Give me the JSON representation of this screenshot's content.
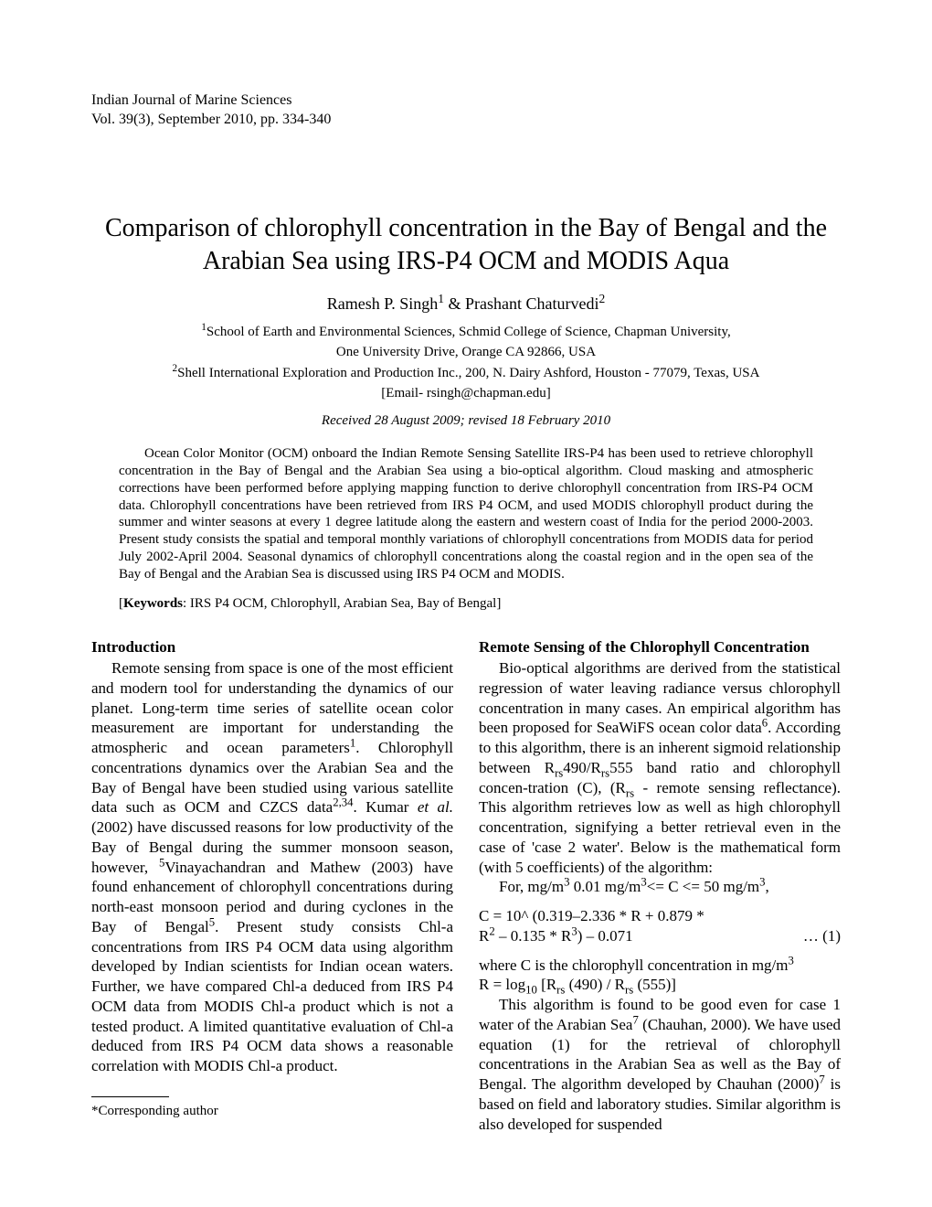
{
  "header": {
    "journal": "Indian Journal of Marine Sciences",
    "citation": "Vol. 39(3), September 2010, pp. 334-340"
  },
  "title": "Comparison of chlorophyll concentration in the Bay of Bengal and the Arabian Sea using IRS-P4 OCM and MODIS Aqua",
  "authors": {
    "line": "Ramesh P. Singh",
    "sup1": "1",
    "amp": " & Prashant Chaturvedi",
    "sup2": "2"
  },
  "affiliations": {
    "aff1_sup": "1",
    "aff1_line1": "School of Earth and Environmental Sciences, Schmid College of Science, Chapman University,",
    "aff1_line2": "One University Drive, Orange CA 92866, USA",
    "aff2_sup": "2",
    "aff2": "Shell International Exploration and Production Inc., 200, N. Dairy Ashford, Houston - 77079, Texas, USA",
    "email": "[Email- rsingh@chapman.edu]"
  },
  "received": "Received 28 August 2009; revised 18 February 2010",
  "abstract": "Ocean Color Monitor (OCM) onboard the Indian Remote Sensing Satellite IRS-P4 has been used to retrieve chlorophyll concentration in the Bay of Bengal and the Arabian Sea using a bio-optical algorithm. Cloud masking and atmospheric corrections have been performed before applying mapping function to derive chlorophyll concentration from IRS-P4 OCM data. Chlorophyll concentrations have been retrieved from IRS P4 OCM, and used MODIS chlorophyll product during the summer and winter seasons at every 1 degree latitude along the eastern and western coast of India for the period 2000-2003. Present study consists the spatial and temporal monthly variations of chlorophyll concentrations from MODIS data for period July 2002-April 2004. Seasonal dynamics of chlorophyll concentrations along the coastal region and in the open sea of the Bay of Bengal and the Arabian Sea is discussed using IRS P4 OCM and MODIS.",
  "keywords": {
    "label": "Keywords",
    "text": ": IRS P4 OCM, Chlorophyll, Arabian Sea, Bay of Bengal]"
  },
  "left": {
    "heading": "Introduction",
    "p1a": "Remote sensing from space is one of the most efficient and modern tool for understanding the dynamics of our planet. Long-term time series of satellite ocean color measurement are important for understanding the atmospheric and ocean parameters",
    "sup1": "1",
    "p1b": ". Chlorophyll concentrations dynamics over the Arabian Sea and the Bay of Bengal have been studied using various satellite data such as OCM and CZCS data",
    "sup2": "2,34",
    "p1c": ". Kumar ",
    "etal": "et al.",
    "p1d": " (2002) have discussed reasons for low productivity of the Bay of Bengal during the summer monsoon season, however, ",
    "sup5": "5",
    "p1e": "Vinayachandran and Mathew (2003) have found enhancement of chlorophyll concentrations during north-east monsoon period and during cyclones in the Bay of Bengal",
    "sup5b": "5",
    "p1f": ". Present study consists Chl-a concentrations from IRS P4 OCM data using algorithm developed by Indian scientists for Indian ocean waters. Further, we have compared Chl-a deduced from IRS P4 OCM data from MODIS Chl-a product which is not a tested product. A limited quantitative evaluation of Chl-a deduced from IRS P4 OCM data shows a reasonable correlation with MODIS Chl-a product."
  },
  "footnote": "*Corresponding author",
  "right": {
    "heading": "Remote Sensing of the Chlorophyll Concentration",
    "p1a": "Bio-optical algorithms are derived from the statistical regression of water leaving radiance versus chlorophyll concentration in many cases. An empirical algorithm has been proposed for SeaWiFS ocean color data",
    "sup6": "6",
    "p1b": ". According to this algorithm, there is an inherent sigmoid relationship between R",
    "rs1": "rs",
    "p1c": "490/R",
    "rs2": "rs",
    "p1d": "555 band ratio and chlorophyll concen-tration (C), (R",
    "rs3": "rs",
    "p1e": " - remote sensing reflectance). This algorithm retrieves low as well as high chlorophyll concentration, signifying a better retrieval even in the case of 'case 2 water'. Below is the mathematical form (with 5 coefficients) of the algorithm:",
    "p2a": "For, mg/m",
    "sup3a": "3",
    "p2b": " 0.01 mg/m",
    "sup3b": "3",
    "p2c": "<= C <= 50 mg/m",
    "sup3c": "3",
    "p2d": ",",
    "eq1_line1": "C = 10^ (0.319–2.336 * R + 0.879 *",
    "eq1_line2a": "R",
    "eq1_sup2": "2",
    "eq1_line2b": " – 0.135 * R",
    "eq1_sup3": "3",
    "eq1_line2c": ") – 0.071",
    "eq1_num": "…  (1)",
    "p3a": "where C is the chlorophyll concentration in mg/m",
    "p3sup": "3",
    "p4a": "R = log",
    "p4sub": "10",
    "p4b": " [R",
    "p4rs1": "rs",
    "p4c": " (490) / R",
    "p4rs2": "rs",
    "p4d": " (555)]",
    "p5a": "This algorithm is found to be good even for case 1 water of the Arabian Sea",
    "sup7": "7",
    "p5b": " (Chauhan",
    "p5comma": ",",
    "p5c": " 2000). We have used equation (1) for the retrieval of chlorophyll concentrations in the Arabian Sea as well as the Bay of Bengal. The algorithm developed by Chauhan (2000)",
    "sup7b": "7",
    "p5d": " is based on field and laboratory studies. Similar algorithm is also developed for suspended"
  }
}
